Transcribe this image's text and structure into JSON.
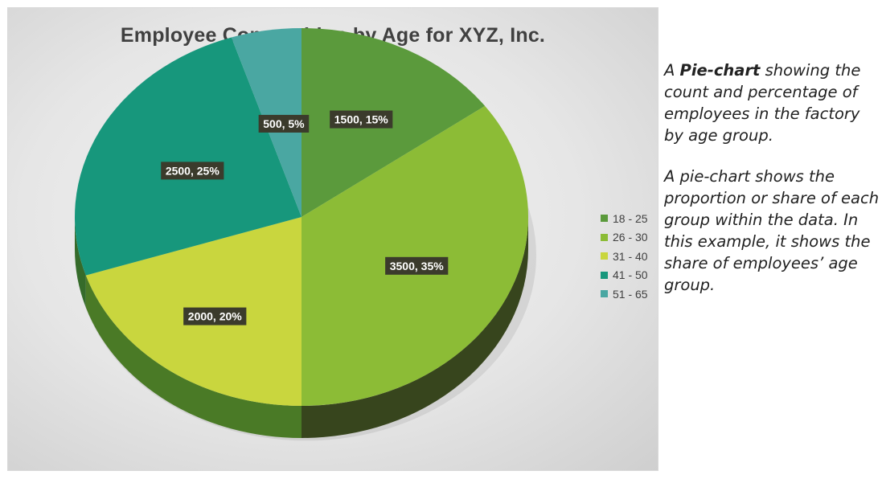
{
  "chart_data": {
    "type": "pie",
    "title": "Employee Composition by Age for XYZ, Inc.",
    "categories": [
      "18 - 25",
      "26 - 30",
      "31 - 40",
      "41 - 50",
      "51 - 65"
    ],
    "values": [
      1500,
      3500,
      2000,
      2500,
      500
    ],
    "percentages": [
      15,
      35,
      20,
      25,
      5
    ],
    "data_labels": [
      "1500, 15%",
      "3500, 35%",
      "2000, 20%",
      "2500, 25%",
      "500, 5%"
    ],
    "colors": [
      "#5b9a3c",
      "#8cbc36",
      "#c9d63e",
      "#17977c",
      "#4aa7a2"
    ],
    "side_colors": [
      "#2b4a1b",
      "#37451d",
      "#4a7a26",
      "#356b2a",
      "#2a5b4e"
    ],
    "legend_position": "right",
    "style": "3d"
  },
  "description": {
    "p1_prefix": "A ",
    "p1_bold": "Pie-chart",
    "p1_suffix": " showing the count and percentage of employees in the factory by age group.",
    "p2": "A pie-chart shows the proportion or share of each group within the data. In this example, it shows the share of employees’ age group."
  }
}
